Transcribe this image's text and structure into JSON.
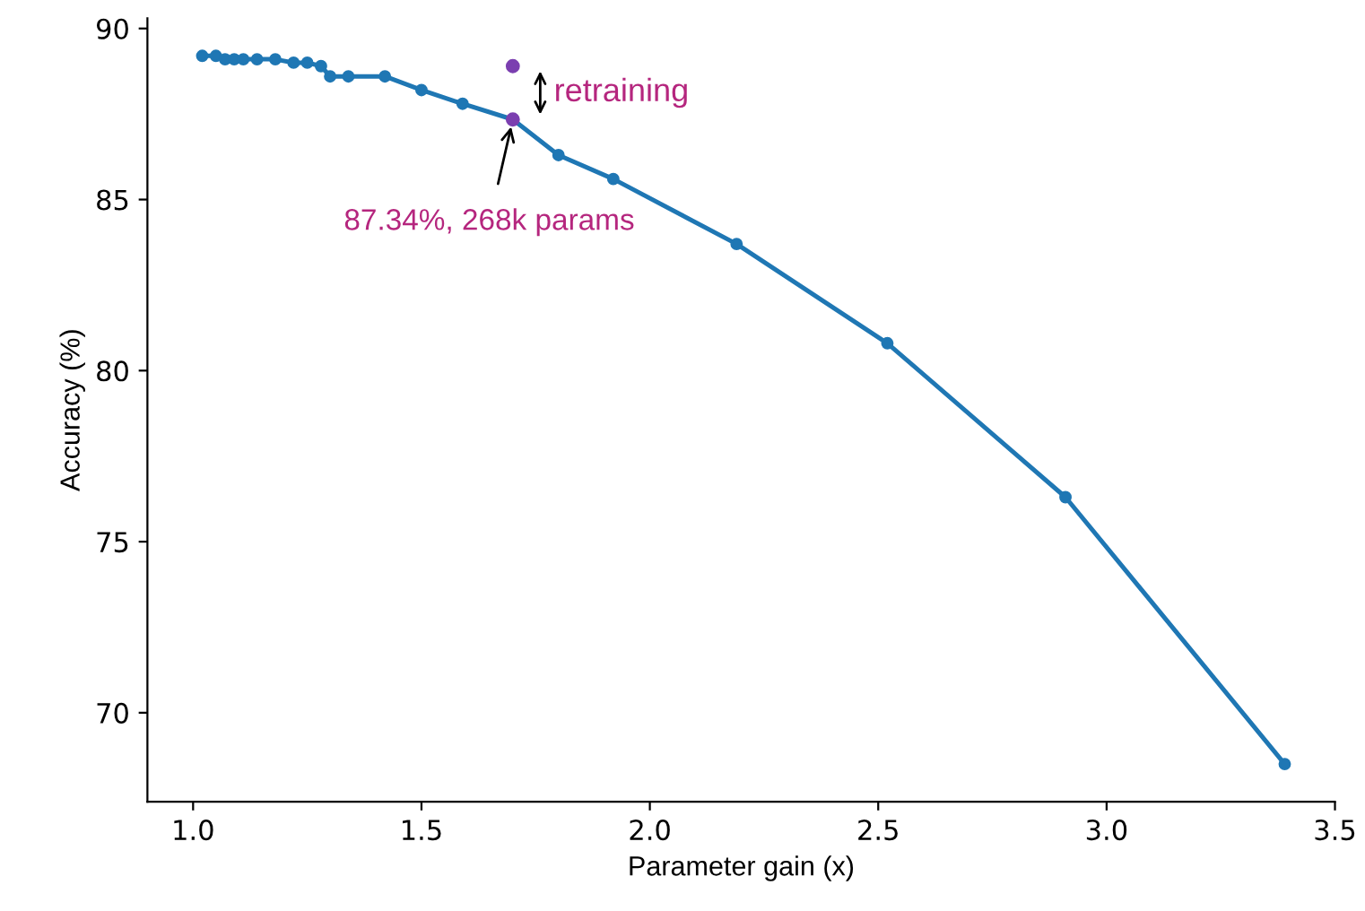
{
  "chart_data": {
    "type": "line",
    "xlabel": "Parameter gain (x)",
    "ylabel": "Accuracy (%)",
    "series": [
      {
        "color": "#1f77b4",
        "marker": "circle",
        "x": [
          1.02,
          1.05,
          1.07,
          1.09,
          1.11,
          1.14,
          1.18,
          1.22,
          1.25,
          1.28,
          1.3,
          1.34,
          1.42,
          1.5,
          1.59,
          1.7,
          1.8,
          1.92,
          2.19,
          2.52,
          2.91,
          3.39
        ],
        "values": [
          89.2,
          89.2,
          89.1,
          89.1,
          89.1,
          89.1,
          89.1,
          89.0,
          89.0,
          88.9,
          88.6,
          88.6,
          88.6,
          88.2,
          87.8,
          87.34,
          86.3,
          85.6,
          83.7,
          80.8,
          76.3,
          68.5
        ]
      },
      {
        "type": "scatter",
        "color": "#7b3fb0",
        "marker": "circle",
        "x": [
          1.7,
          1.7
        ],
        "values": [
          88.9,
          87.34
        ]
      }
    ],
    "annotations": [
      {
        "text": "retraining",
        "x": 1.7,
        "y": 88.9
      },
      {
        "text": "87.34%, 268k params",
        "x": 1.7,
        "y": 87.34
      }
    ],
    "xlim": [
      0.9,
      3.5
    ],
    "ylim": [
      67.4,
      90.3
    ],
    "xticks": [
      {
        "value": 1.0,
        "label": "1.0"
      },
      {
        "value": 1.5,
        "label": "1.5"
      },
      {
        "value": 2.0,
        "label": "2.0"
      },
      {
        "value": 2.5,
        "label": "2.5"
      },
      {
        "value": 3.0,
        "label": "3.0"
      },
      {
        "value": 3.5,
        "label": "3.5"
      }
    ],
    "yticks": [
      70,
      75,
      80,
      85,
      90
    ],
    "grid": false,
    "legend": false
  }
}
